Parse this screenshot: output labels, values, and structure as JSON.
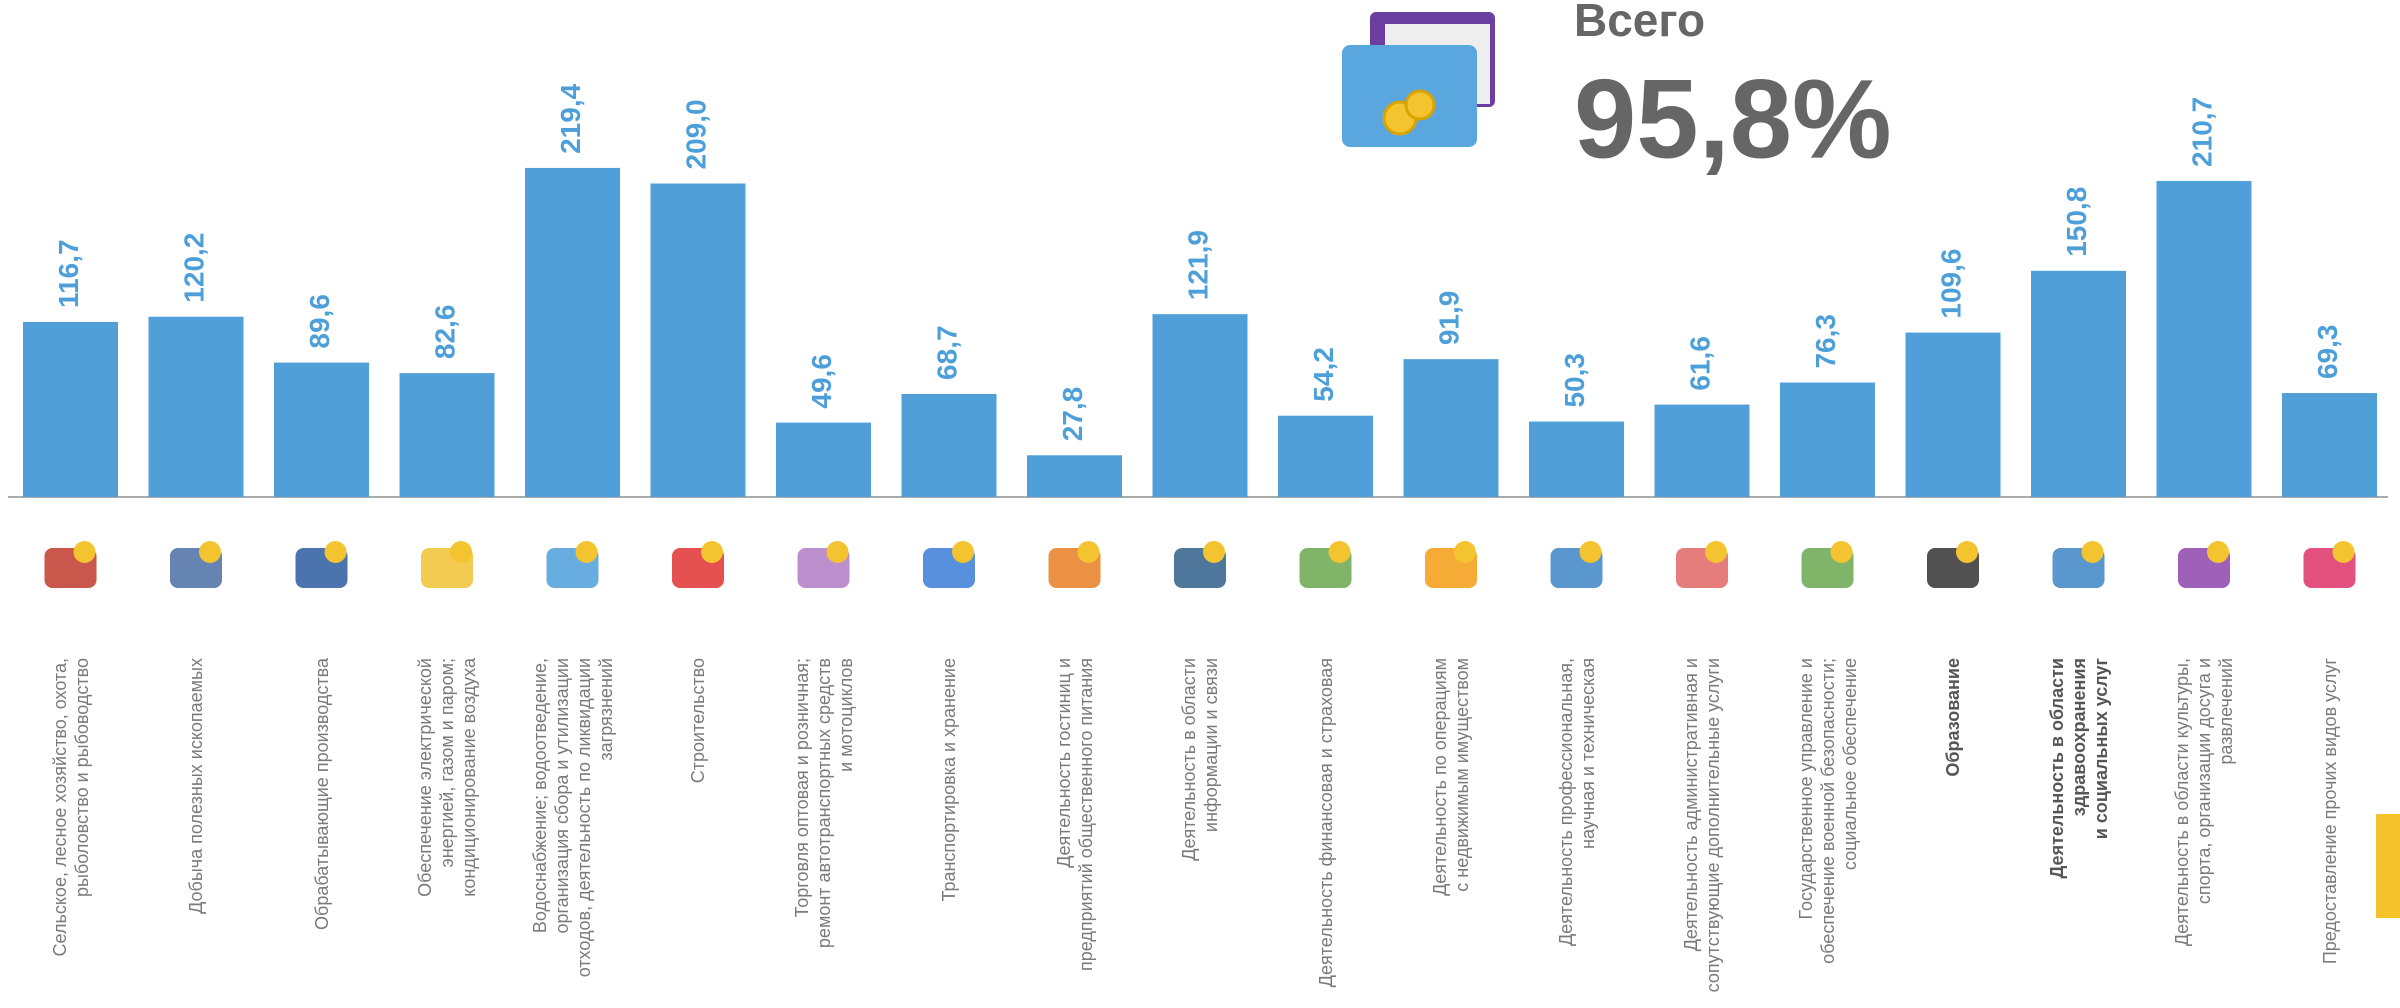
{
  "total_title": "Всего",
  "total_value": "95,8%",
  "chart_data": {
    "type": "bar",
    "color": "#519fd9",
    "ylim": [
      0,
      230
    ],
    "categories": [
      "Сельское, лесное хозяйство, охота,\nрыболовство и  рыбоводство",
      "Добыча полезных ископаемых",
      "Обрабатывающие производства",
      "Обеспечение электрической\nэнергией, газом и паром;\nкондиционирование воздуха",
      "Водоснабжение; водоотведение,\nорганизация сбора и утилизации\nотходов, деятельность по ликвидации\nзагрязнений",
      "Строительство",
      "Торговля оптовая и розничная;\nремонт автотранспортных средств\nи мотоциклов",
      "Транспортировка и хранение",
      "Деятельность гостиниц и\nпредприятий общественного питания",
      "Деятельность в области\nинформации и связи",
      "Деятельность финансовая и страховая",
      "Деятельность по операциям\nс недвижимым имуществом",
      "Деятельность профессиональная,\nнаучная и техническая",
      "Деятельность административная и\nсопутствующие дополнительные услуги",
      "Государственное управление и\nобеспечение военной безопасности;\nсоциальное обеспечение",
      "Образование",
      "Деятельность в области\nздравоохранения\nи социальных услуг",
      "Деятельность в области культуры,\nспорта, организации досуга и\nразвлечений",
      "Предоставление прочих видов услуг"
    ],
    "values": [
      116.7,
      120.2,
      89.6,
      82.6,
      219.4,
      209.0,
      49.6,
      68.7,
      27.8,
      121.9,
      54.2,
      91.9,
      50.3,
      61.6,
      76.3,
      109.6,
      150.8,
      210.7,
      69.3
    ],
    "value_labels": [
      "116,7",
      "120,2",
      "89,6",
      "82,6",
      "219,4",
      "209,0",
      "49,6",
      "68,7",
      "27,8",
      "121,9",
      "54,2",
      "91,9",
      "50,3",
      "61,6",
      "76,3",
      "109,6",
      "150,8",
      "210,7",
      "69,3"
    ]
  }
}
